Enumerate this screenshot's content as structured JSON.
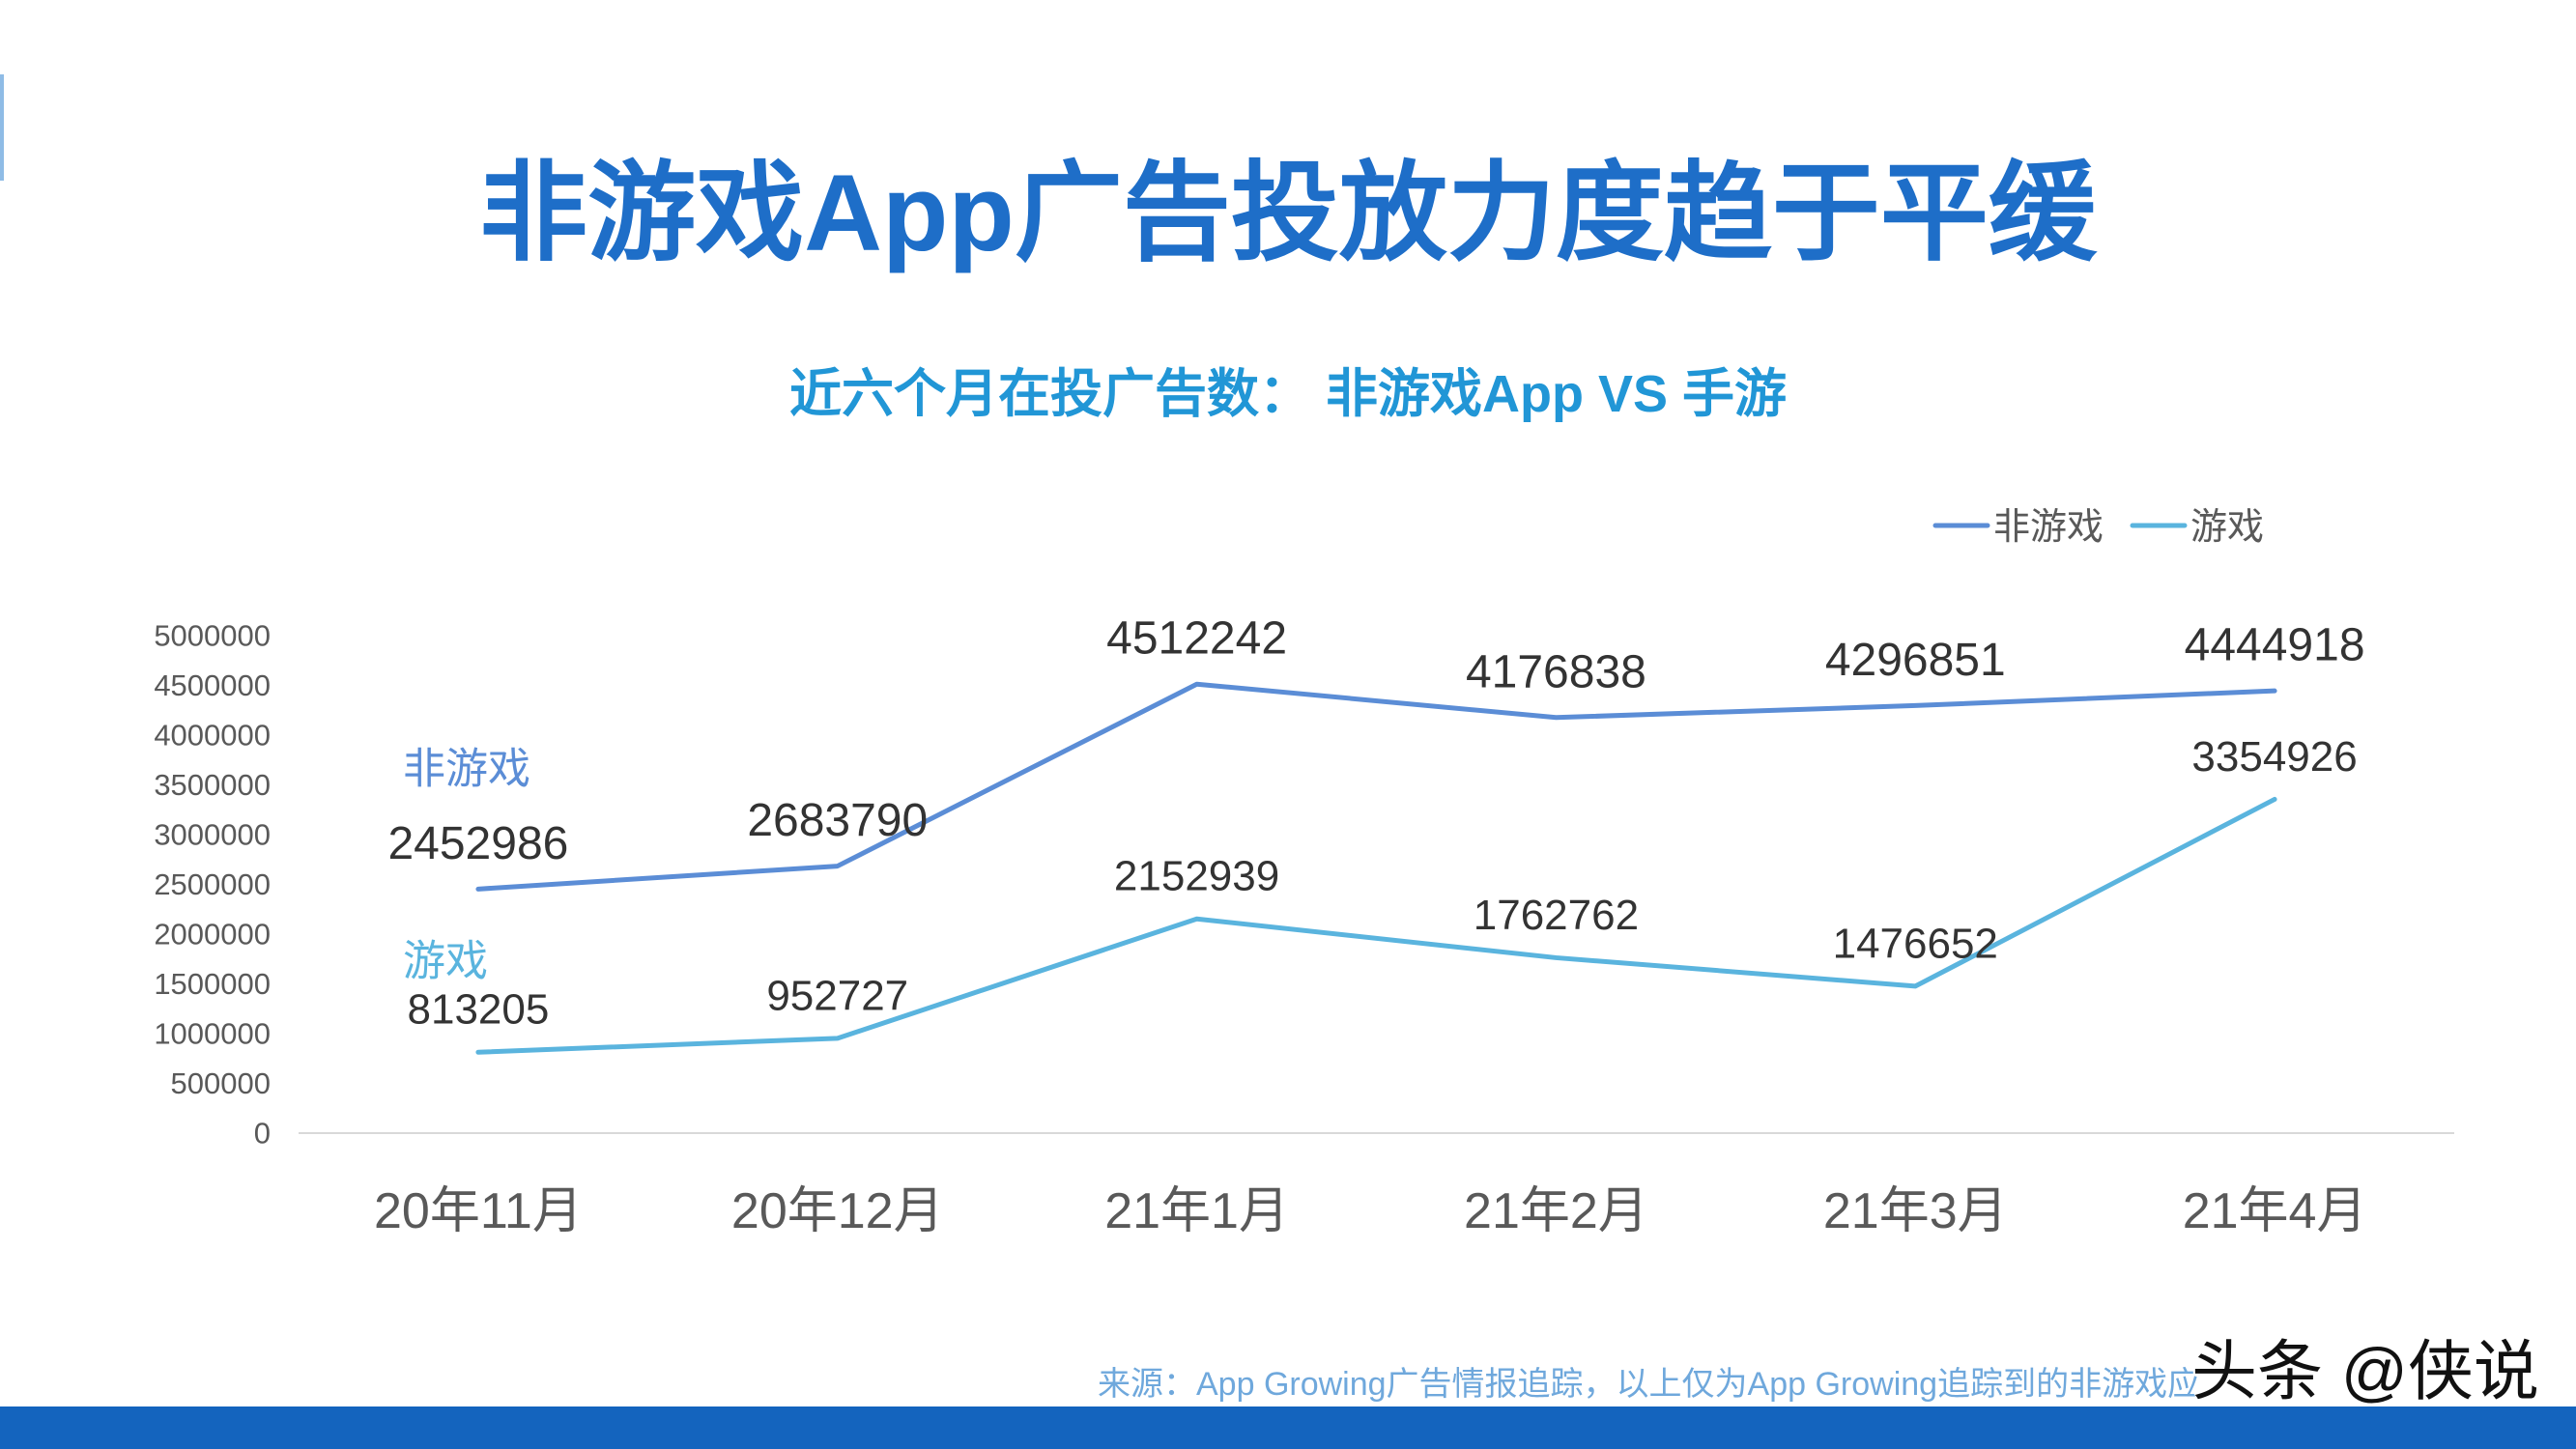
{
  "slide": {
    "title": "非游戏App广告投放力度趋于平缓",
    "title_color": "#1e6ec8",
    "subtitle_color": "#2196d6",
    "source": "来源：App Growing广告情报追踪，以上仅为App Growing追踪到的非游戏应",
    "source_color": "#6fa8dc",
    "footer_bar_color": "#1464be"
  },
  "watermark": {
    "text": "头条 @侠说"
  },
  "chart_data": {
    "type": "line",
    "title": "近六个月在投广告数： 非游戏App VS 手游",
    "categories": [
      "20年11月",
      "20年12月",
      "21年1月",
      "21年2月",
      "21年3月",
      "21年4月"
    ],
    "series": [
      {
        "name": "非游戏",
        "values": [
          2452986,
          2683790,
          4512242,
          4176838,
          4296851,
          4444918
        ],
        "color": "#5b8dd6"
      },
      {
        "name": "游戏",
        "values": [
          813205,
          952727,
          2152939,
          1762762,
          1476652,
          3354926
        ],
        "color": "#5ab4de"
      }
    ],
    "ylim": [
      0,
      5000000
    ],
    "yticks": [
      0,
      500000,
      1000000,
      1500000,
      2000000,
      2500000,
      3000000,
      3500000,
      4000000,
      4500000,
      5000000
    ],
    "grid": false,
    "legend": "top-right",
    "data_labels": true
  }
}
